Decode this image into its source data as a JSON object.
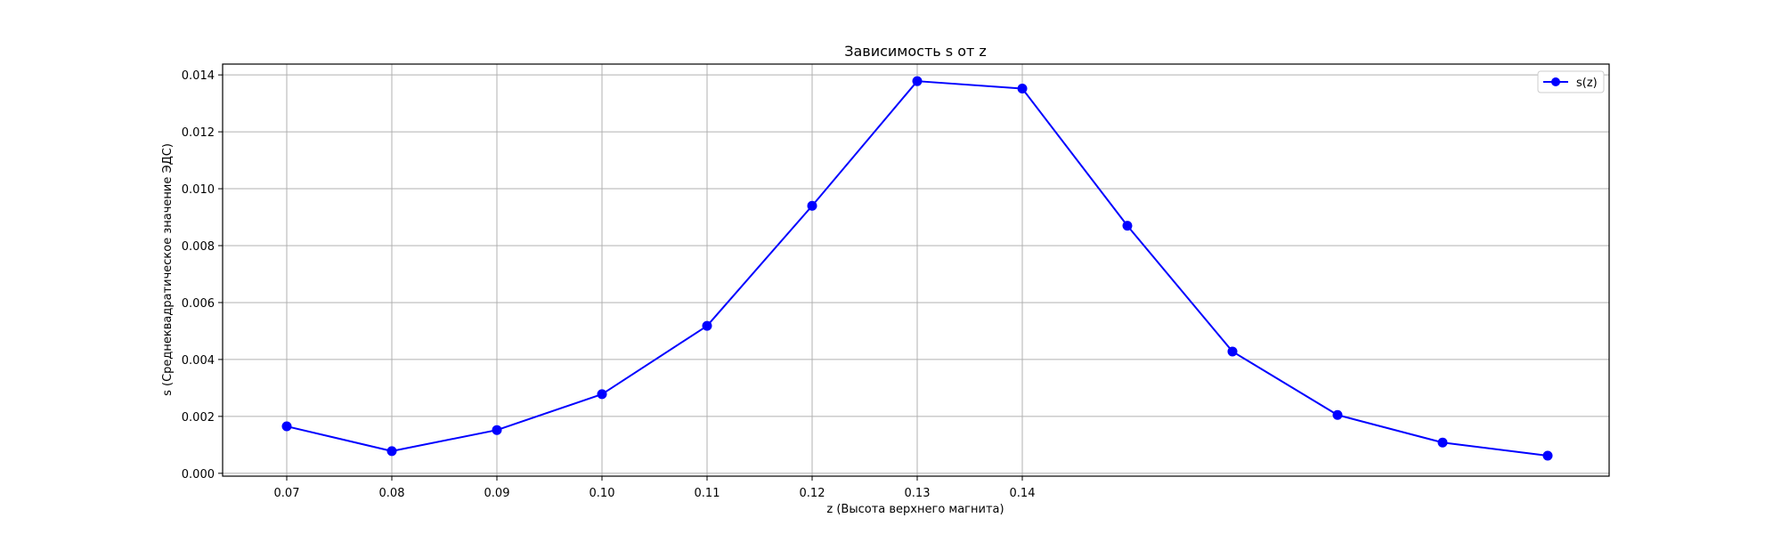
{
  "chart_data": {
    "type": "line",
    "title": "Зависимость s от z",
    "xlabel": "z (Высота верхнего магнита)",
    "ylabel": "s (Среднеквадратическое значение ЭДС)",
    "x_tick_labels": [
      "0.07",
      "0.08",
      "0.09",
      "0.10",
      "0.11",
      "0.12",
      "0.13",
      "0.14"
    ],
    "y_ticks": [
      0.0,
      0.002,
      0.004,
      0.006,
      0.008,
      0.01,
      0.012,
      0.014
    ],
    "y_tick_labels": [
      "0.000",
      "0.002",
      "0.004",
      "0.006",
      "0.008",
      "0.010",
      "0.012",
      "0.014"
    ],
    "ylim": [
      -0.0001,
      0.01438
    ],
    "grid": true,
    "legend_position": "top-right",
    "series": [
      {
        "name": "s(z)",
        "color": "#0000ff",
        "marker": "circle",
        "values": [
          0.00165,
          0.00078,
          0.00152,
          0.00278,
          0.00518,
          0.0094,
          0.01378,
          0.01352,
          0.0087,
          0.00428,
          0.00205,
          0.00108,
          0.00062
        ]
      }
    ]
  }
}
